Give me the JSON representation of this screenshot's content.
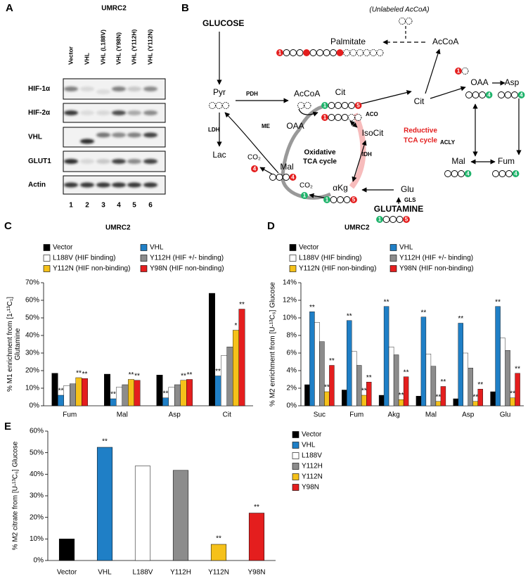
{
  "panel_a": {
    "letter": "A",
    "title": "UMRC2",
    "lanes": [
      "Vector",
      "VHL",
      "VHL (L188V)",
      "VHL (Y98N)",
      "VHL (Y112H)",
      "VHL (Y112N)"
    ],
    "proteins": [
      "HIF-1α",
      "HIF-2α",
      "VHL",
      "GLUT1",
      "Actin"
    ],
    "lane_numbers": [
      "1",
      "2",
      "3",
      "4",
      "5",
      "6"
    ]
  },
  "panel_b": {
    "letter": "B",
    "labels": [
      "GLUCOSE",
      "(Unlabeled AcCoA)",
      "Palmitate",
      "AcCoA",
      "Pyr",
      "PDH",
      "AcCoA",
      "ACLY",
      "OAA",
      "Asp",
      "Cit",
      "Cit",
      "LDH",
      "ME",
      "OAA",
      "ACO",
      "IsoCit",
      "Reductive",
      "TCA cycle",
      "Lac",
      "Oxidative",
      "TCA cycle",
      "IDH",
      "Mal",
      "αKg",
      "Glu",
      "Mal",
      "Fum",
      "GLS",
      "GLUTAMINE",
      "CO₂",
      "CO₂"
    ],
    "isotope_numbers": [
      "1",
      "1",
      "5",
      "1",
      "4",
      "4",
      "1",
      "1",
      "5",
      "1",
      "5",
      "1",
      "4",
      "4",
      "4",
      "4"
    ]
  },
  "chart_data": [
    {
      "type": "bar",
      "panel": "C",
      "title": "UMRC2",
      "y_label": [
        "% M1 enrichment from [1-¹³C₁]",
        "Glutamine"
      ],
      "categories": [
        "Fum",
        "Mal",
        "Asp",
        "Cit"
      ],
      "series": [
        {
          "name": "Vector",
          "color": "#000000",
          "values": [
            18.5,
            18,
            17.5,
            64
          ],
          "significance": [
            null,
            null,
            null,
            null
          ]
        },
        {
          "name": "VHL",
          "color": "#1f7fc6",
          "values": [
            6,
            4,
            4.5,
            17
          ],
          "significance": [
            "**",
            "**",
            "**",
            "**"
          ]
        },
        {
          "name": "L188V (HIF binding)",
          "color": "#ffffff",
          "values": [
            11.5,
            10.5,
            10.5,
            28.5
          ],
          "significance": [
            null,
            null,
            null,
            null
          ]
        },
        {
          "name": "Y112H (HIF +/- binding)",
          "color": "#8c8c8c",
          "values": [
            12.5,
            12,
            12,
            33.5
          ],
          "significance": [
            null,
            null,
            null,
            null
          ]
        },
        {
          "name": "Y112N (HIF non-binding)",
          "color": "#f5c11a",
          "values": [
            16,
            15,
            14.5,
            43
          ],
          "significance": [
            "**",
            "**",
            "**",
            "*"
          ]
        },
        {
          "name": "Y98N (HIF non-binding)",
          "color": "#e41e1e",
          "values": [
            15.5,
            14.5,
            15,
            55
          ],
          "significance": [
            "**",
            "**",
            "**",
            "**"
          ]
        }
      ],
      "ylim": [
        0,
        70
      ],
      "yticks": [
        {
          "value": 0,
          "label": "0%"
        },
        {
          "value": 10,
          "label": "10%"
        },
        {
          "value": 20,
          "label": "20%"
        },
        {
          "value": 30,
          "label": "30%"
        },
        {
          "value": 40,
          "label": "40%"
        },
        {
          "value": 50,
          "label": "50%"
        },
        {
          "value": 60,
          "label": "60%"
        },
        {
          "value": 70,
          "label": "70%"
        }
      ]
    },
    {
      "type": "bar",
      "panel": "D",
      "title": "UMRC2",
      "y_label": [
        "% M2 enrichment  from [U-¹³C₆] Glucose"
      ],
      "categories": [
        "Suc",
        "Fum",
        "Akg",
        "Mal",
        "Asp",
        "Glu"
      ],
      "series": [
        {
          "name": "Vector",
          "color": "#000000",
          "values": [
            2.4,
            1.8,
            1.2,
            1.1,
            0.8,
            1.6
          ],
          "significance": [
            null,
            null,
            null,
            null,
            null,
            null
          ]
        },
        {
          "name": "VHL",
          "color": "#1f7fc6",
          "values": [
            10.7,
            9.7,
            11.3,
            10.1,
            9.4,
            11.3
          ],
          "significance": [
            "**",
            "**",
            "**",
            "**",
            "**",
            "**"
          ]
        },
        {
          "name": "L188V (HIF binding)",
          "color": "#ffffff",
          "values": [
            9.5,
            6.2,
            6.7,
            5.9,
            6.0,
            7.7
          ],
          "significance": [
            null,
            null,
            null,
            null,
            null,
            null
          ]
        },
        {
          "name": "Y112H (HIF +/- binding)",
          "color": "#8c8c8c",
          "values": [
            7.3,
            4.6,
            5.8,
            4.5,
            4.3,
            6.3
          ],
          "significance": [
            null,
            null,
            null,
            null,
            null,
            null
          ]
        },
        {
          "name": "Y112N (HIF non-binding)",
          "color": "#f5c11a",
          "values": [
            1.6,
            1.2,
            0.7,
            0.5,
            0.5,
            0.9
          ],
          "significance": [
            "**",
            "**",
            "**",
            "**",
            "**",
            "**"
          ]
        },
        {
          "name": "Y98N (HIF non-binding)",
          "color": "#e41e1e",
          "values": [
            4.6,
            2.7,
            3.3,
            2.2,
            1.9,
            3.7
          ],
          "significance": [
            "**",
            "**",
            "**",
            "**",
            "**",
            "**"
          ]
        }
      ],
      "ylim": [
        0,
        14
      ],
      "yticks": [
        {
          "value": 0,
          "label": "0%"
        },
        {
          "value": 2,
          "label": "2%"
        },
        {
          "value": 4,
          "label": "4%"
        },
        {
          "value": 6,
          "label": "6%"
        },
        {
          "value": 8,
          "label": "8%"
        },
        {
          "value": 10,
          "label": "10%"
        },
        {
          "value": 12,
          "label": "12%"
        },
        {
          "value": 14,
          "label": "14%"
        }
      ]
    },
    {
      "type": "bar",
      "panel": "E",
      "y_label": [
        "% M2 citrate  from [U-¹³C₆] Glucose"
      ],
      "categories": [
        "Vector",
        "VHL",
        "L188V",
        "Y112H",
        "Y112N",
        "Y98N"
      ],
      "values": [
        10,
        52.5,
        43.8,
        41.8,
        7.5,
        22
      ],
      "colors": [
        "#000000",
        "#1f7fc6",
        "#ffffff",
        "#8c8c8c",
        "#f5c11a",
        "#e41e1e"
      ],
      "significance": [
        null,
        "**",
        null,
        null,
        "**",
        "**"
      ],
      "ylim": [
        0,
        60
      ],
      "yticks": [
        {
          "value": 0,
          "label": "0%"
        },
        {
          "value": 10,
          "label": "10%"
        },
        {
          "value": 20,
          "label": "20%"
        },
        {
          "value": 30,
          "label": "30%"
        },
        {
          "value": 40,
          "label": "40%"
        },
        {
          "value": 50,
          "label": "50%"
        },
        {
          "value": 60,
          "label": "60%"
        }
      ]
    }
  ]
}
